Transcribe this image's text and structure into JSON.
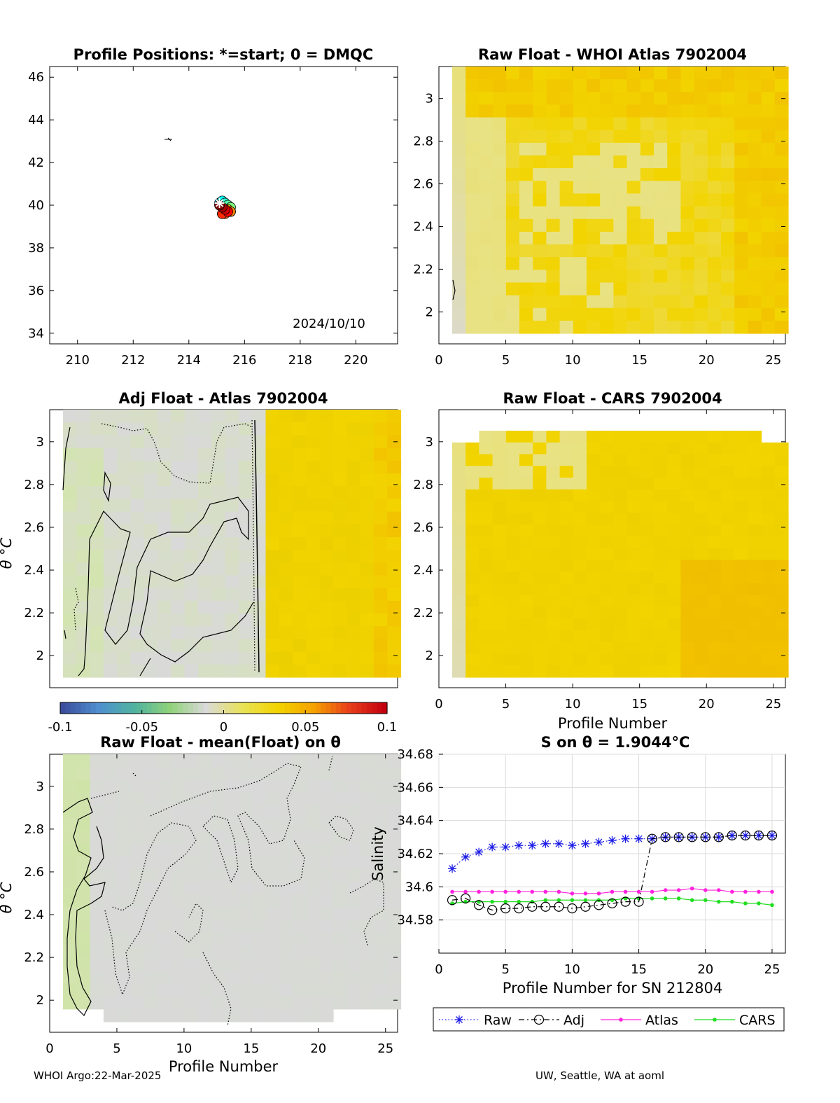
{
  "colors": {
    "diverging": [
      "#3b4d9c",
      "#4f8fcf",
      "#4fb3a0",
      "#8fd27a",
      "#d9d9d9",
      "#e8e25a",
      "#f2d400",
      "#f5a300",
      "#e8401a",
      "#c40010"
    ],
    "raw": "#1a1ae6",
    "adj": "#000000",
    "atlas": "#ff22dd",
    "cars": "#22dd22"
  },
  "footer": {
    "left": "WHOI Argo:22-Mar-2025",
    "right": "UW, Seattle, WA at aoml"
  },
  "panels": {
    "map": {
      "title": "Profile Positions: *=start; 0 = DMQC",
      "date_label": "2024/10/10",
      "xticks": [
        "210",
        "212",
        "214",
        "216",
        "218",
        "220"
      ],
      "yticks": [
        "34",
        "36",
        "38",
        "40",
        "42",
        "44",
        "46"
      ]
    },
    "whoi": {
      "title": "Raw Float - WHOI Atlas  7902004",
      "xticks": [
        "0",
        "5",
        "10",
        "15",
        "20",
        "25"
      ],
      "yticks": [
        "2",
        "2.2",
        "2.4",
        "2.6",
        "2.8",
        "3"
      ]
    },
    "adj": {
      "title": "Adj Float - Atlas  7902004",
      "ylabel": "θ °C",
      "yticks": [
        "2",
        "2.2",
        "2.4",
        "2.6",
        "2.8",
        "3"
      ]
    },
    "cars": {
      "title": "Raw Float - CARS  7902004",
      "xlabel": "Profile Number",
      "xticks": [
        "0",
        "5",
        "10",
        "15",
        "20",
        "25"
      ],
      "yticks": [
        "2",
        "2.2",
        "2.4",
        "2.6",
        "2.8",
        "3"
      ]
    },
    "colorbar": {
      "ticks": [
        "-0.1",
        "-0.05",
        "0",
        "0.05",
        "0.1"
      ]
    },
    "mean": {
      "title": "Raw Float - mean(Float) on θ",
      "ylabel": "θ °C",
      "xlabel": "Profile Number",
      "xticks": [
        "0",
        "5",
        "10",
        "15",
        "20",
        "25"
      ],
      "yticks": [
        "2",
        "2.2",
        "2.4",
        "2.6",
        "2.8",
        "3"
      ]
    },
    "salinity": {
      "title": "S on θ = 1.9044°C",
      "ylabel": "Salinity",
      "xlabel": "Profile Number for SN 212804",
      "xticks": [
        "0",
        "5",
        "10",
        "15",
        "20",
        "25"
      ],
      "yticks": [
        "34.58",
        "34.6",
        "34.62",
        "34.64",
        "34.66",
        "34.68"
      ],
      "legend": [
        "Raw",
        "Adj",
        "Atlas",
        "CARS"
      ]
    }
  },
  "chart_data": [
    {
      "type": "scatter",
      "title": "Profile Positions: *=start; 0 = DMQC",
      "xlim": [
        209,
        221.5
      ],
      "ylim": [
        33.5,
        46.5
      ],
      "x": [
        215.1,
        215.2,
        215.3,
        215.4,
        215.5,
        215.4,
        215.3,
        215.2,
        215.1,
        215.2,
        215.3,
        215.4,
        215.5,
        215.4,
        215.3,
        215.2,
        215.3,
        215.4,
        215.5,
        215.3,
        215.2,
        215.4,
        215.3,
        215.2,
        215.1
      ],
      "y": [
        40.1,
        40.0,
        39.9,
        39.8,
        39.7,
        39.8,
        39.9,
        40.0,
        40.1,
        40.2,
        40.1,
        40.0,
        39.9,
        39.8,
        39.7,
        39.6,
        39.7,
        39.8,
        39.7,
        39.6,
        39.6,
        39.7,
        39.8,
        39.9,
        40.0
      ],
      "annotation": "2024/10/10"
    },
    {
      "type": "heatmap",
      "title": "Raw Float - WHOI Atlas  7902004",
      "x": [
        1,
        25
      ],
      "ylim": [
        1.85,
        3.15
      ],
      "clim": [
        -0.1,
        0.1
      ]
    },
    {
      "type": "heatmap",
      "title": "Adj Float - Atlas  7902004",
      "x": [
        1,
        25
      ],
      "ylim": [
        1.85,
        3.15
      ],
      "clim": [
        -0.1,
        0.1
      ]
    },
    {
      "type": "heatmap",
      "title": "Raw Float - CARS  7902004",
      "x": [
        1,
        25
      ],
      "ylim": [
        1.85,
        3.15
      ],
      "clim": [
        -0.1,
        0.1
      ]
    },
    {
      "type": "heatmap",
      "title": "Raw Float - mean(Float) on θ",
      "x": [
        1,
        25
      ],
      "ylim": [
        1.85,
        3.15
      ],
      "clim": [
        -0.1,
        0.1
      ]
    },
    {
      "type": "line",
      "title": "S on θ = 1.9044°C",
      "xlabel": "Profile Number for SN 212804",
      "ylabel": "Salinity",
      "xlim": [
        0,
        26
      ],
      "ylim": [
        34.56,
        34.68
      ],
      "grid": true,
      "legend_position": "below",
      "x": [
        1,
        2,
        3,
        4,
        5,
        6,
        7,
        8,
        9,
        10,
        11,
        12,
        13,
        14,
        15,
        16,
        17,
        18,
        19,
        20,
        21,
        22,
        23,
        24,
        25
      ],
      "series": [
        {
          "name": "Raw",
          "values": [
            34.611,
            34.618,
            34.621,
            34.624,
            34.624,
            34.625,
            34.625,
            34.626,
            34.626,
            34.625,
            34.626,
            34.627,
            34.628,
            34.629,
            34.629,
            34.629,
            34.63,
            34.63,
            34.63,
            34.63,
            34.63,
            34.631,
            34.631,
            34.631,
            34.631
          ]
        },
        {
          "name": "Adj",
          "values": [
            34.592,
            34.593,
            34.589,
            34.586,
            34.587,
            34.587,
            34.588,
            34.588,
            34.588,
            34.587,
            34.588,
            34.589,
            34.59,
            34.591,
            34.591,
            34.629,
            34.63,
            34.63,
            34.63,
            34.63,
            34.63,
            34.631,
            34.631,
            34.631,
            34.631
          ]
        },
        {
          "name": "Atlas",
          "values": [
            34.597,
            34.597,
            34.597,
            34.597,
            34.597,
            34.597,
            34.597,
            34.597,
            34.597,
            34.596,
            34.596,
            34.596,
            34.597,
            34.597,
            34.597,
            34.597,
            34.598,
            34.598,
            34.599,
            34.598,
            34.598,
            34.597,
            34.597,
            34.597,
            34.597
          ]
        },
        {
          "name": "CARS",
          "values": [
            34.59,
            34.591,
            34.591,
            34.591,
            34.591,
            34.591,
            34.591,
            34.592,
            34.592,
            34.592,
            34.592,
            34.592,
            34.592,
            34.593,
            34.593,
            34.593,
            34.593,
            34.593,
            34.592,
            34.592,
            34.591,
            34.591,
            34.59,
            34.59,
            34.589
          ]
        }
      ]
    }
  ]
}
